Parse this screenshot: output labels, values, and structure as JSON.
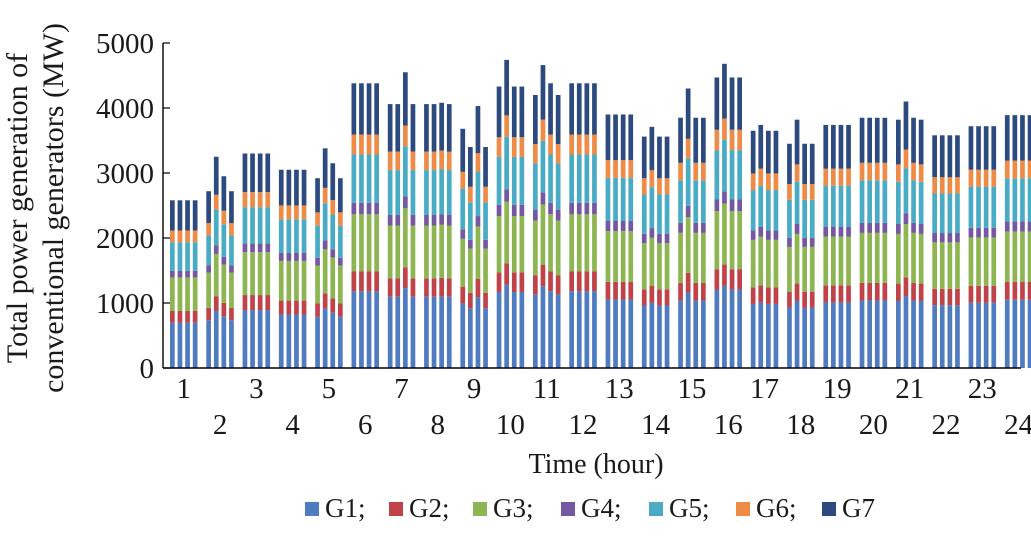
{
  "chart_data": {
    "type": "bar",
    "stacked": true,
    "title": "",
    "xlabel": "Time (hour)",
    "ylabel_line1": "Total power generation of",
    "ylabel_line2": "conventional generators (MW)",
    "ylim": [
      0,
      5000
    ],
    "yticks": [
      "0",
      "1000",
      "2000",
      "3000",
      "4000",
      "5000"
    ],
    "categories": [
      "1",
      "2",
      "3",
      "4",
      "5",
      "6",
      "7",
      "8",
      "9",
      "10",
      "11",
      "12",
      "13",
      "14",
      "15",
      "16",
      "17",
      "18",
      "19",
      "20",
      "21",
      "22",
      "23",
      "24"
    ],
    "bars_per_hour": 4,
    "series_names": [
      "G1;",
      "G2;",
      "G3;",
      "G4;",
      "G5;",
      "G6;",
      "G7"
    ],
    "colors": [
      "#4F7BC0",
      "#C0434A",
      "#8DB652",
      "#7658A2",
      "#4AABC4",
      "#EE8B46",
      "#2C4A7E"
    ],
    "legend_position": "bottom",
    "hour_totals": [
      [
        2580,
        2580,
        2580,
        2580
      ],
      [
        2720,
        3250,
        2950,
        2720
      ],
      [
        3300,
        3300,
        3300,
        3300
      ],
      [
        3050,
        3050,
        3050,
        3050
      ],
      [
        2920,
        3380,
        3150,
        2920
      ],
      [
        4380,
        4380,
        4380,
        4380
      ],
      [
        4060,
        4060,
        4550,
        4060
      ],
      [
        4060,
        4060,
        4080,
        4060
      ],
      [
        3680,
        3400,
        4030,
        3400
      ],
      [
        4330,
        4740,
        4330,
        4330
      ],
      [
        4200,
        4660,
        4380,
        4200
      ],
      [
        4380,
        4380,
        4380,
        4380
      ],
      [
        3900,
        3900,
        3900,
        3900
      ],
      [
        3560,
        3710,
        3560,
        3560
      ],
      [
        3850,
        4300,
        3850,
        3850
      ],
      [
        4470,
        4680,
        4470,
        4470
      ],
      [
        3650,
        3740,
        3650,
        3650
      ],
      [
        3450,
        3820,
        3450,
        3450
      ],
      [
        3740,
        3740,
        3740,
        3740
      ],
      [
        3850,
        3850,
        3850,
        3850
      ],
      [
        3820,
        4100,
        3850,
        3820
      ],
      [
        3580,
        3580,
        3580,
        3580
      ],
      [
        3720,
        3720,
        3720,
        3720
      ],
      [
        3890,
        3890,
        3890,
        3890
      ]
    ],
    "composition_fractions": [
      0.27,
      0.07,
      0.2,
      0.04,
      0.17,
      0.07,
      0.18
    ]
  }
}
